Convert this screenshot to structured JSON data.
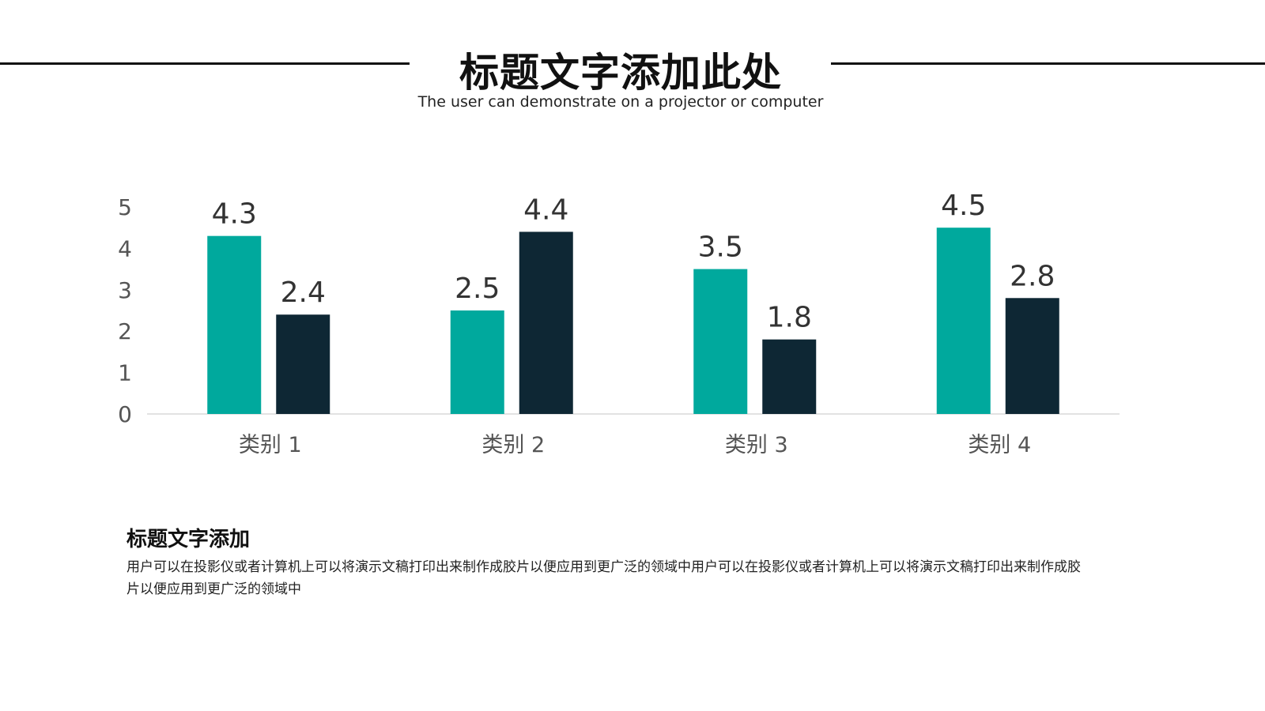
{
  "header": {
    "title": "标题文字添加此处",
    "subtitle": "The user can demonstrate on a projector or computer"
  },
  "chart_data": {
    "type": "bar",
    "categories": [
      "类别 1",
      "类别 2",
      "类别 3",
      "类别 4"
    ],
    "series": [
      {
        "values": [
          4.3,
          2.5,
          3.5,
          4.5
        ],
        "color": "#00a99d"
      },
      {
        "values": [
          2.4,
          4.4,
          1.8,
          2.8
        ],
        "color": "#0e2734"
      }
    ],
    "yticks": [
      "0",
      "1",
      "2",
      "3",
      "4",
      "5"
    ],
    "ylim": [
      0,
      5
    ],
    "grid": false,
    "data_labels": true,
    "legend": "none"
  },
  "section": {
    "title": "标题文字添加",
    "body": "用户可以在投影仪或者计算机上可以将演示文稿打印出来制作成胶片以便应用到更广泛的领域中用户可以在投影仪或者计算机上可以将演示文稿打印出来制作成胶片以便应用到更广泛的领域中"
  }
}
